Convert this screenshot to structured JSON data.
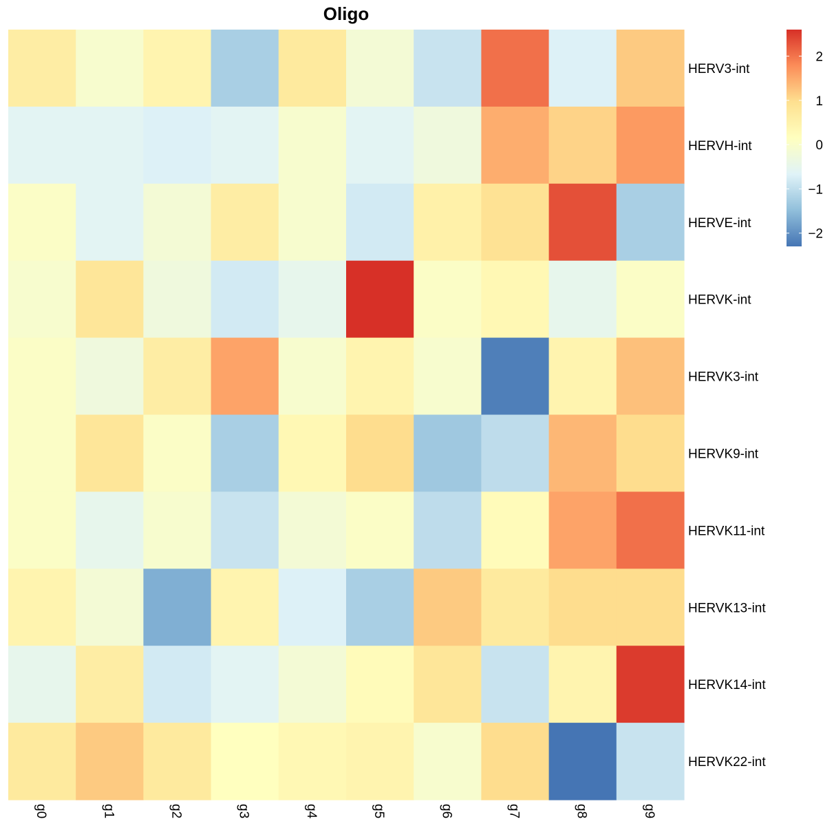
{
  "chart_data": {
    "type": "heatmap",
    "title": "Oligo",
    "x": [
      "g0",
      "g1",
      "g2",
      "g3",
      "g4",
      "g5",
      "g6",
      "g7",
      "g8",
      "g9"
    ],
    "y": [
      "HERV3-int",
      "HERVH-int",
      "HERVE-int",
      "HERVK-int",
      "HERVK3-int",
      "HERVK9-int",
      "HERVK11-int",
      "HERVK13-int",
      "HERVK14-int",
      "HERVK22-int"
    ],
    "values": [
      [
        0.5,
        -0.2,
        0.3,
        -1.3,
        0.6,
        -0.3,
        -1.0,
        2.0,
        -0.8,
        1.1
      ],
      [
        -0.7,
        -0.7,
        -0.8,
        -0.7,
        -0.2,
        -0.7,
        -0.4,
        1.4,
        1.0,
        1.6
      ],
      [
        -0.1,
        -0.7,
        -0.3,
        0.5,
        -0.2,
        -0.9,
        0.4,
        0.8,
        2.3,
        -1.3
      ],
      [
        -0.2,
        0.7,
        -0.4,
        -0.9,
        -0.6,
        2.6,
        -0.1,
        0.2,
        -0.6,
        -0.1
      ],
      [
        -0.1,
        -0.4,
        0.5,
        1.5,
        -0.2,
        0.3,
        -0.2,
        -2.2,
        0.3,
        1.2
      ],
      [
        -0.1,
        0.7,
        -0.1,
        -1.3,
        0.2,
        0.9,
        -1.4,
        -1.1,
        1.3,
        0.9
      ],
      [
        -0.1,
        -0.6,
        -0.2,
        -1.0,
        -0.3,
        -0.1,
        -1.1,
        0.1,
        1.5,
        2.0
      ],
      [
        0.3,
        -0.3,
        -1.7,
        0.3,
        -0.8,
        -1.3,
        1.1,
        0.6,
        0.9,
        0.9
      ],
      [
        -0.6,
        0.5,
        -0.9,
        -0.7,
        -0.3,
        0.1,
        0.7,
        -1.0,
        0.3,
        2.5
      ],
      [
        0.6,
        1.1,
        0.6,
        0.0,
        0.2,
        0.3,
        -0.2,
        0.9,
        -2.3,
        -1.0
      ]
    ],
    "colorbar": {
      "ticks": [
        2,
        1,
        0,
        -1,
        -2
      ],
      "range": [
        -2.3,
        2.6
      ]
    },
    "colors": {
      "low": "#4575B4",
      "mid_low": "#91BFDB",
      "mid_low2": "#E0F3F8",
      "mid": "#FFFFBF",
      "mid_high2": "#FEE090",
      "mid_high": "#FC8D59",
      "high": "#D73027"
    }
  }
}
